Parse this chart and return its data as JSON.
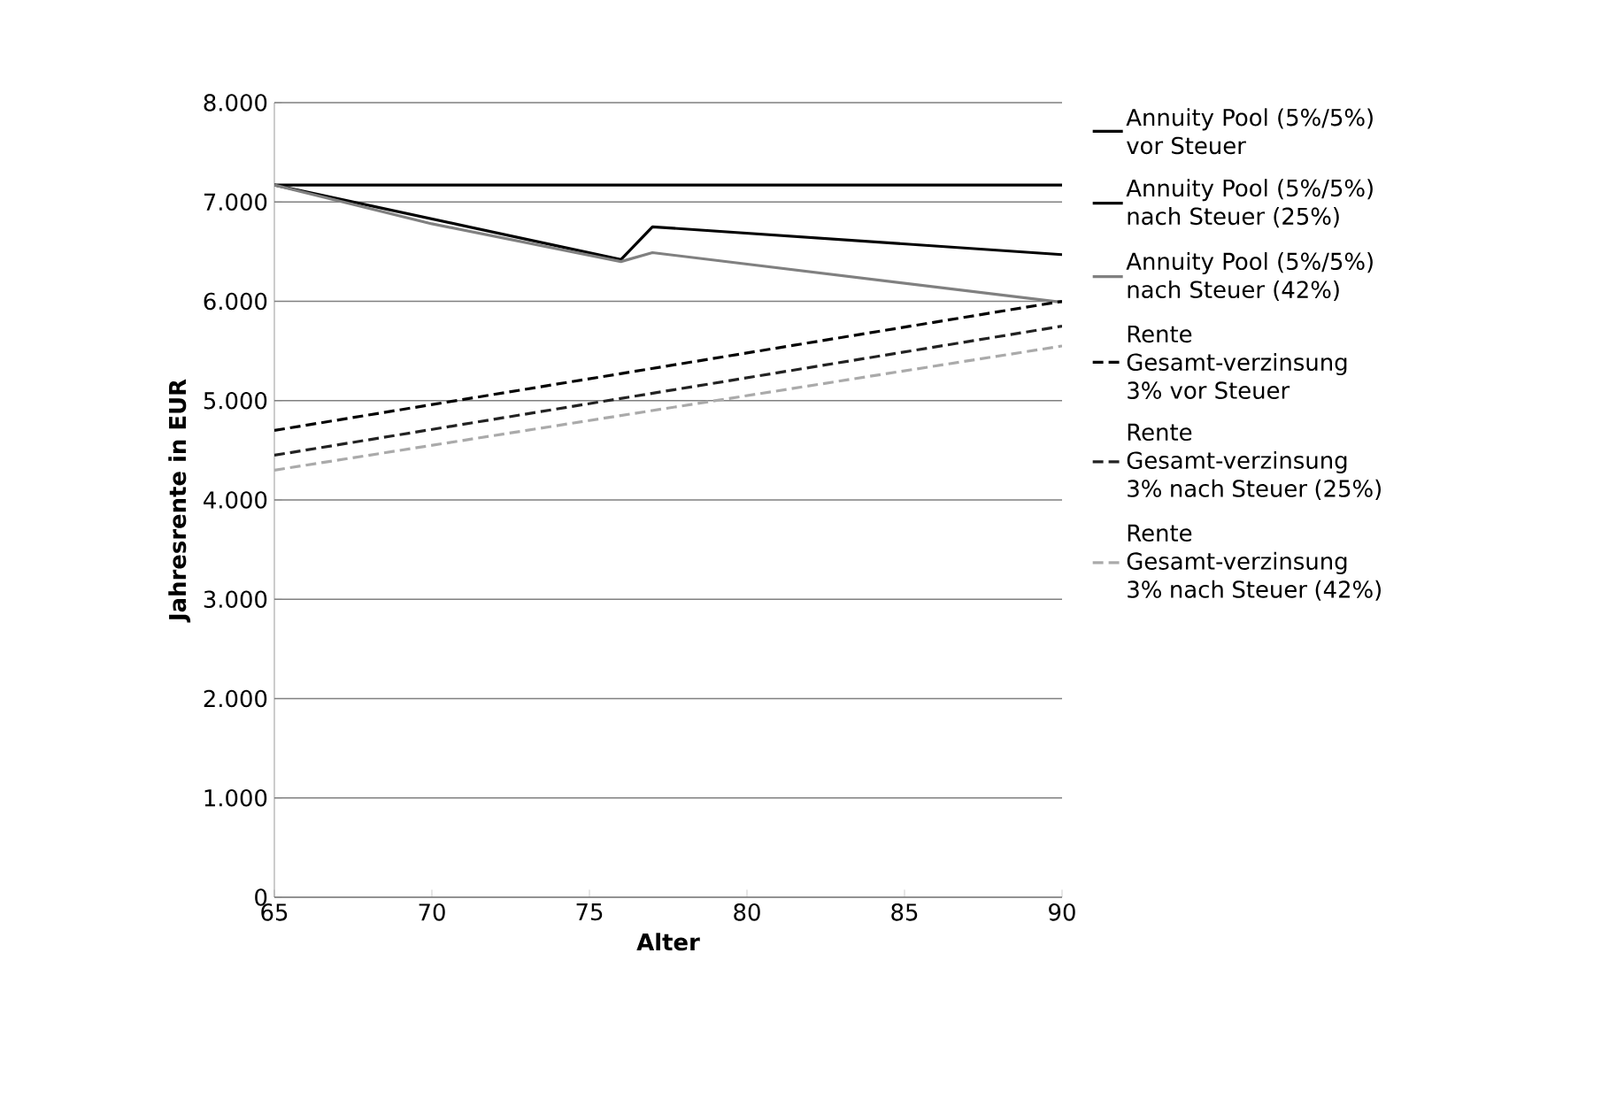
{
  "chart_data": {
    "type": "line",
    "xlabel": "Alter",
    "ylabel": "Jahresrente in EUR",
    "xlim": [
      65,
      90
    ],
    "xticks": [
      65,
      70,
      75,
      80,
      85,
      90
    ],
    "ylim": [
      0,
      8000
    ],
    "yticks": [
      0,
      {
        "value": 1000,
        "label": "1.000"
      },
      {
        "value": 2000,
        "label": "2.000"
      },
      {
        "value": 3000,
        "label": "3.000"
      },
      {
        "value": 4000,
        "label": "4.000"
      },
      {
        "value": 5000,
        "label": "5.000"
      },
      {
        "value": 6000,
        "label": "6.000"
      },
      {
        "value": 7000,
        "label": "7.000"
      },
      {
        "value": 8000,
        "label": "8.000"
      }
    ],
    "grid": "y",
    "legend": "right",
    "series": [
      {
        "name": "Annuity Pool (5%/5%) vor Steuer",
        "color": "#000000",
        "line_style": "solid",
        "x": [
          65,
          90
        ],
        "values": [
          7170,
          7170
        ]
      },
      {
        "name": "Annuity Pool (5%/5%) nach Steuer (25%)",
        "color": "#000000",
        "line_style": "solid",
        "x": [
          65,
          76,
          77,
          90
        ],
        "values": [
          7170,
          6420,
          6750,
          6470
        ]
      },
      {
        "name": "Annuity Pool (5%/5%) nach Steuer (42%)",
        "color": "#808080",
        "line_style": "solid",
        "x": [
          65,
          70,
          76,
          77,
          90
        ],
        "values": [
          7170,
          6780,
          6400,
          6490,
          5990
        ]
      },
      {
        "name": "Rente Gesamt-verzinsung 3% vor Steuer",
        "color": "#000000",
        "line_style": "dashed",
        "x": [
          65,
          90
        ],
        "values": [
          4700,
          6000
        ]
      },
      {
        "name": "Rente Gesamt-verzinsung 3% nach Steuer (25%)",
        "color": "#222222",
        "line_style": "dashed",
        "x": [
          65,
          90
        ],
        "values": [
          4450,
          5750
        ]
      },
      {
        "name": "Rente Gesamt-verzinsung  3% nach Steuer (42%)",
        "color": "#aaaaaa",
        "line_style": "dashed",
        "x": [
          65,
          90
        ],
        "values": [
          4300,
          5550
        ]
      }
    ]
  }
}
